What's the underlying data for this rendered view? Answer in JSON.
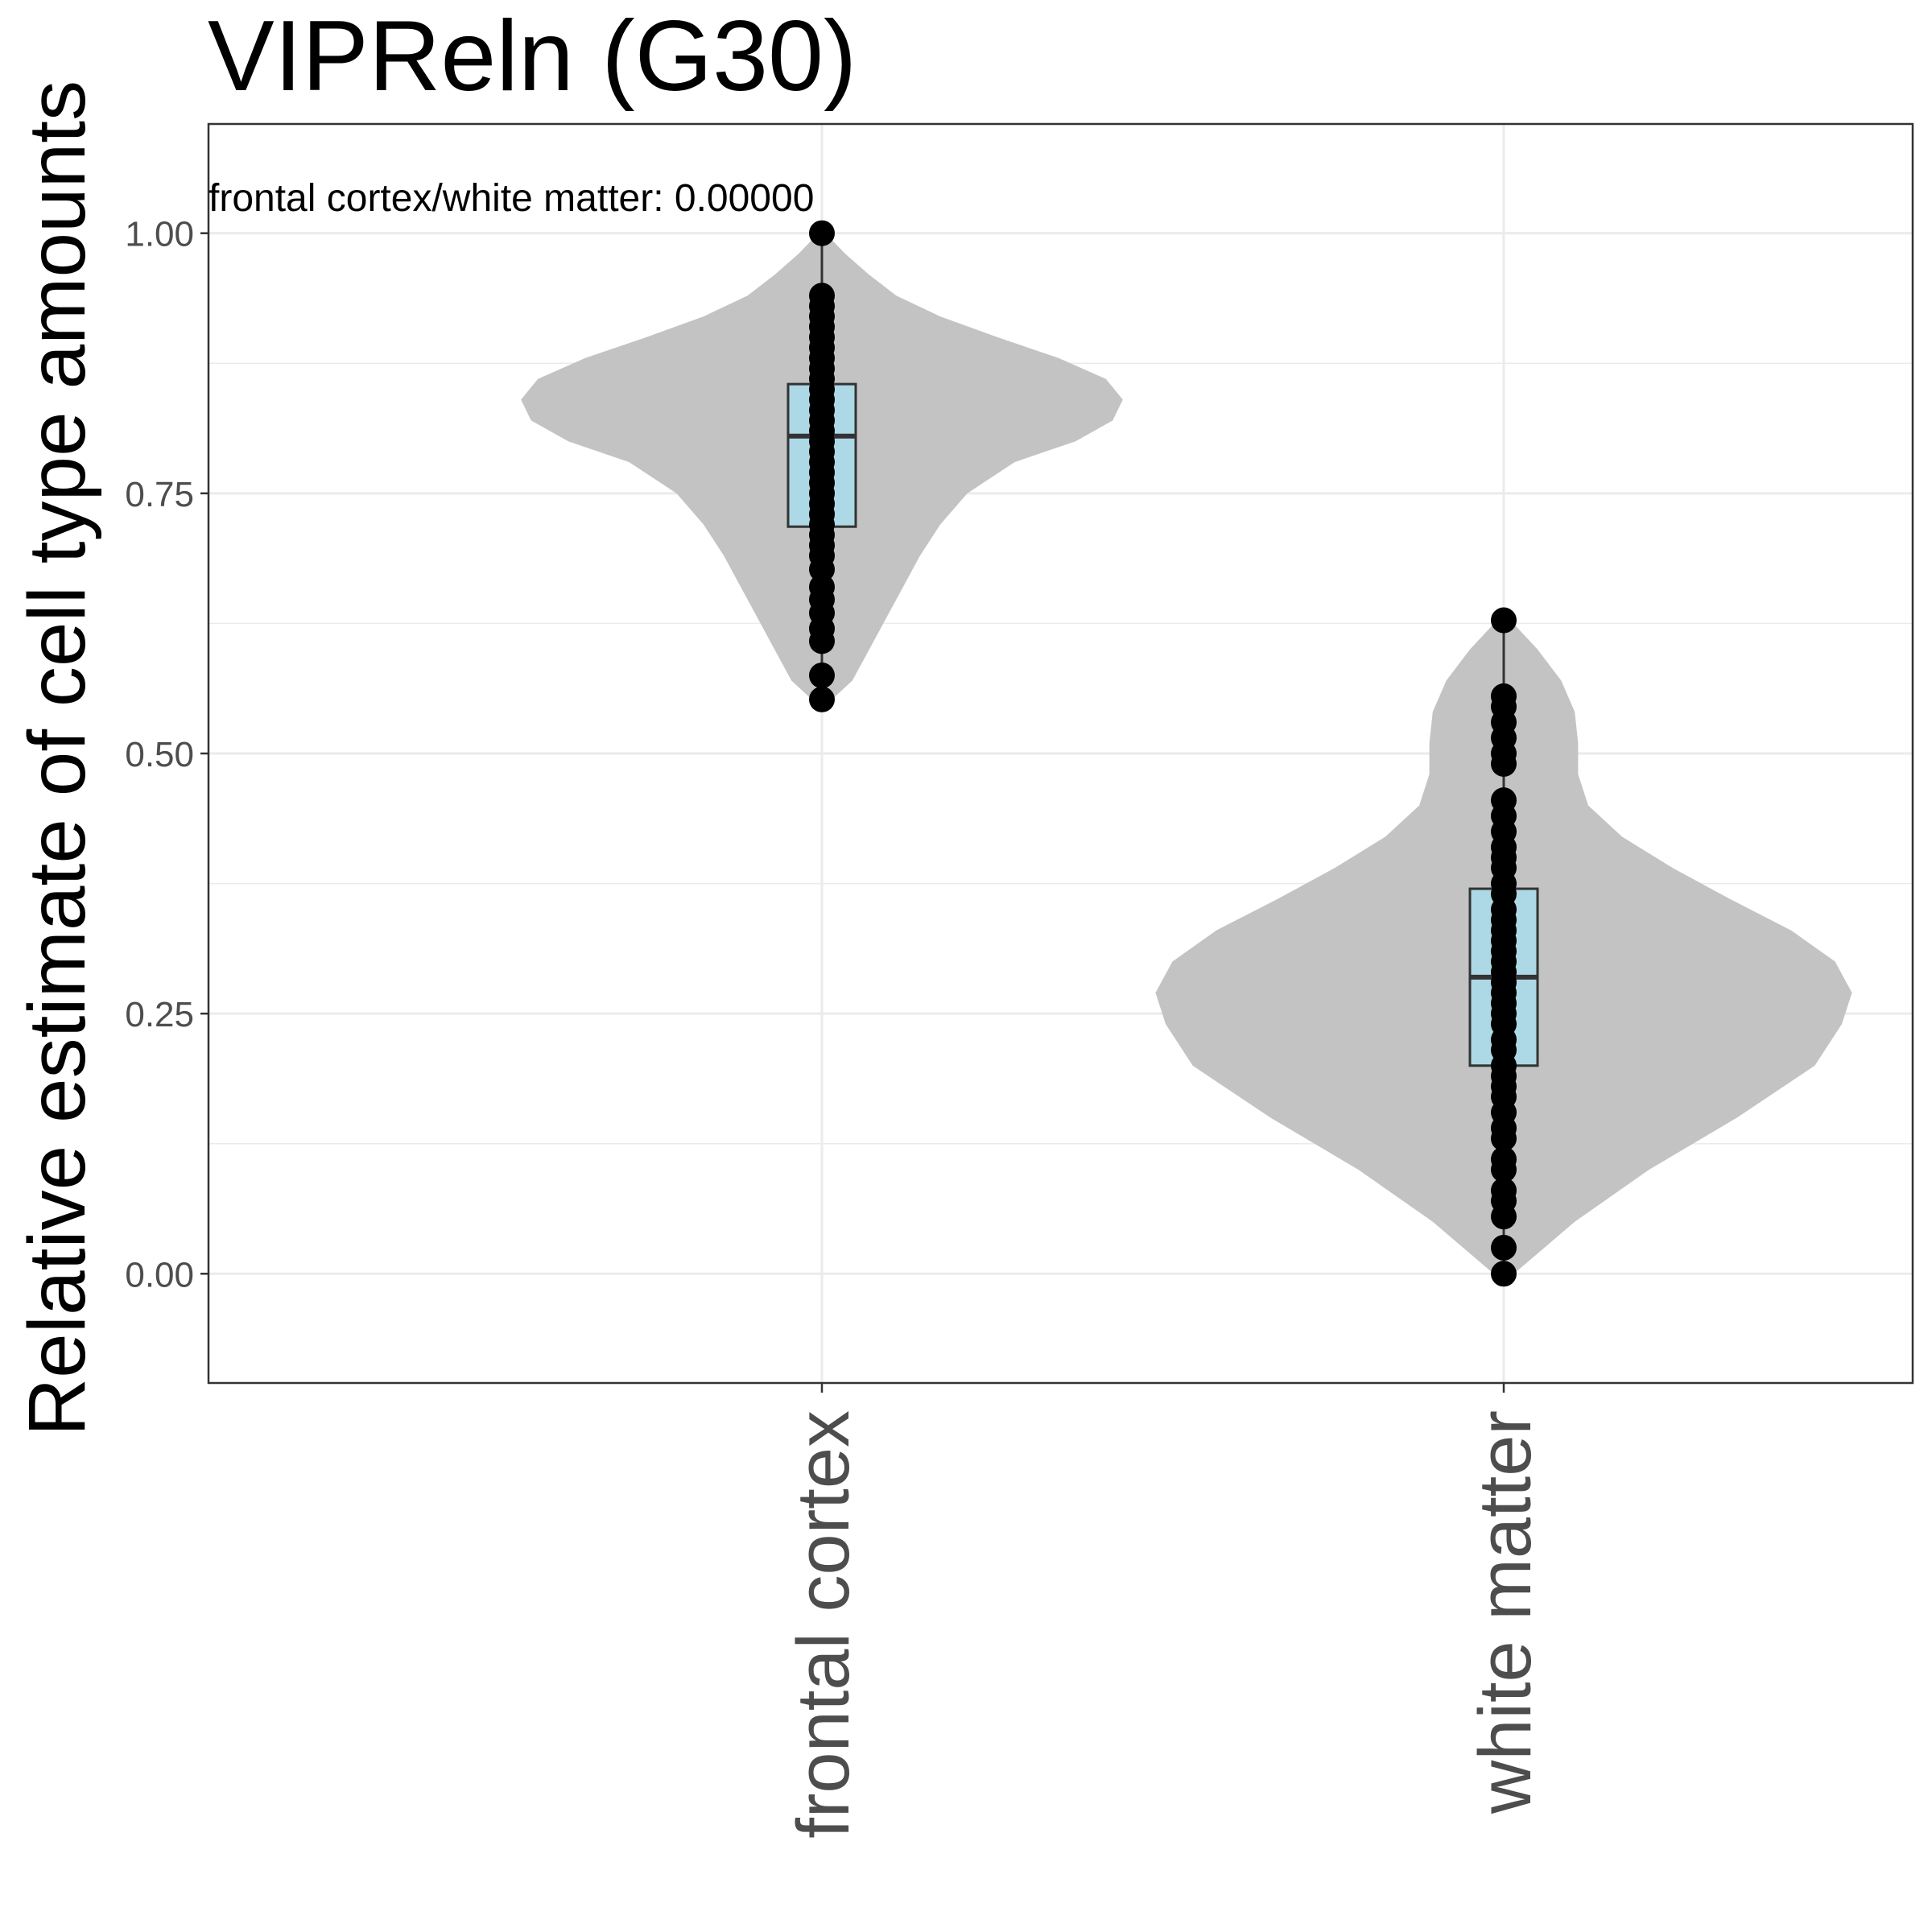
{
  "chart_data": {
    "type": "violin",
    "title": "VIPReln (G30)",
    "ylabel": "Relative estimate of cell type amounts",
    "xlabel": "",
    "ylim": [
      -0.105,
      1.105
    ],
    "yticks": [
      0.0,
      0.25,
      0.5,
      0.75,
      1.0
    ],
    "ytick_labels": [
      "0.00",
      "0.25",
      "0.50",
      "0.75",
      "1.00"
    ],
    "grid": true,
    "categories": [
      "frontal cortex",
      "white matter"
    ],
    "annotation": "frontal cortex/white matter: 0.00000",
    "colors": {
      "violin": "#c3c3c3",
      "box": "#add8e6",
      "point": "#000000",
      "grid": "#ebebeb",
      "panel_border": "#333333"
    },
    "groups": [
      {
        "name": "frontal cortex",
        "box": {
          "lower_whisker": 0.552,
          "q1": 0.718,
          "median": 0.805,
          "q3": 0.855,
          "upper_whisker": 1.0
        },
        "violin": [
          [
            0.552,
            0.03
          ],
          [
            0.57,
            0.09
          ],
          [
            0.6,
            0.14
          ],
          [
            0.63,
            0.19
          ],
          [
            0.66,
            0.24
          ],
          [
            0.69,
            0.29
          ],
          [
            0.72,
            0.35
          ],
          [
            0.75,
            0.43
          ],
          [
            0.78,
            0.57
          ],
          [
            0.8,
            0.75
          ],
          [
            0.82,
            0.86
          ],
          [
            0.84,
            0.89
          ],
          [
            0.86,
            0.84
          ],
          [
            0.88,
            0.7
          ],
          [
            0.9,
            0.52
          ],
          [
            0.92,
            0.35
          ],
          [
            0.94,
            0.22
          ],
          [
            0.96,
            0.14
          ],
          [
            0.98,
            0.07
          ],
          [
            1.0,
            0.01
          ]
        ],
        "points": [
          0.552,
          0.575,
          0.608,
          0.62,
          0.635,
          0.648,
          0.66,
          0.677,
          0.69,
          0.7,
          0.71,
          0.72,
          0.73,
          0.74,
          0.75,
          0.76,
          0.77,
          0.78,
          0.79,
          0.8,
          0.81,
          0.82,
          0.83,
          0.84,
          0.85,
          0.86,
          0.87,
          0.88,
          0.89,
          0.9,
          0.91,
          0.92,
          0.93,
          0.94,
          1.0
        ]
      },
      {
        "name": "white matter",
        "box": {
          "lower_whisker": 0.0,
          "q1": 0.2,
          "median": 0.285,
          "q3": 0.37,
          "upper_whisker": 0.628
        },
        "violin": [
          [
            0.0,
            0.03
          ],
          [
            0.05,
            0.21
          ],
          [
            0.1,
            0.43
          ],
          [
            0.15,
            0.69
          ],
          [
            0.2,
            0.92
          ],
          [
            0.24,
            1.0
          ],
          [
            0.27,
            1.03
          ],
          [
            0.3,
            0.98
          ],
          [
            0.33,
            0.85
          ],
          [
            0.36,
            0.67
          ],
          [
            0.39,
            0.5
          ],
          [
            0.42,
            0.35
          ],
          [
            0.45,
            0.25
          ],
          [
            0.48,
            0.22
          ],
          [
            0.51,
            0.22
          ],
          [
            0.54,
            0.21
          ],
          [
            0.57,
            0.17
          ],
          [
            0.6,
            0.1
          ],
          [
            0.628,
            0.02
          ]
        ],
        "points": [
          0.0,
          0.025,
          0.055,
          0.07,
          0.08,
          0.1,
          0.11,
          0.13,
          0.14,
          0.155,
          0.17,
          0.18,
          0.19,
          0.2,
          0.215,
          0.225,
          0.24,
          0.25,
          0.26,
          0.27,
          0.28,
          0.29,
          0.3,
          0.31,
          0.32,
          0.33,
          0.34,
          0.35,
          0.365,
          0.375,
          0.39,
          0.4,
          0.41,
          0.425,
          0.44,
          0.455,
          0.49,
          0.5,
          0.515,
          0.53,
          0.545,
          0.555,
          0.628
        ]
      }
    ]
  }
}
